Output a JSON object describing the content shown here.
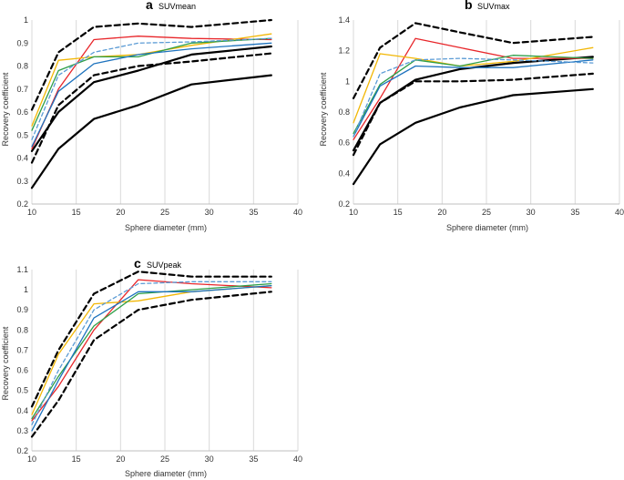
{
  "chart_data": [
    {
      "type": "line",
      "panel_letter": "a",
      "title": "SUVmean",
      "xlabel": "Sphere diameter (mm)",
      "ylabel": "Recovery coefficient",
      "xlim": [
        10,
        40
      ],
      "ylim": [
        0.2,
        1.0
      ],
      "xticks": [
        "10",
        "15",
        "20",
        "25",
        "30",
        "35",
        "40"
      ],
      "yticks": [
        "0.2",
        "0.3",
        "0.4",
        "0.5",
        "0.6",
        "0.7",
        "0.8",
        "0.9",
        "1"
      ],
      "grid": "vertical",
      "x": [
        10,
        13,
        17,
        22,
        28,
        37
      ],
      "series": [
        {
          "name": "upper bound",
          "color": "#000000",
          "style": "dashed",
          "width": 2.2,
          "values": [
            0.61,
            0.86,
            0.97,
            0.985,
            0.97,
            1.0
          ]
        },
        {
          "name": "lower bound",
          "color": "#000000",
          "style": "dashed",
          "width": 2.2,
          "values": [
            0.38,
            0.63,
            0.76,
            0.8,
            0.82,
            0.855
          ]
        },
        {
          "name": "black solid upper",
          "color": "#000000",
          "style": "solid",
          "width": 2.2,
          "values": [
            0.43,
            0.6,
            0.73,
            0.78,
            0.85,
            0.885
          ]
        },
        {
          "name": "black solid lower",
          "color": "#000000",
          "style": "solid",
          "width": 2.2,
          "values": [
            0.27,
            0.44,
            0.57,
            0.63,
            0.72,
            0.76
          ]
        },
        {
          "name": "red",
          "color": "#e8262a",
          "style": "solid",
          "width": 1.3,
          "values": [
            0.44,
            0.7,
            0.915,
            0.93,
            0.92,
            0.915
          ]
        },
        {
          "name": "orange",
          "color": "#f2b705",
          "style": "solid",
          "width": 1.3,
          "values": [
            0.54,
            0.825,
            0.84,
            0.85,
            0.89,
            0.94
          ]
        },
        {
          "name": "green",
          "color": "#2e9e48",
          "style": "solid",
          "width": 1.3,
          "values": [
            0.52,
            0.78,
            0.84,
            0.84,
            0.9,
            0.92
          ]
        },
        {
          "name": "blue",
          "color": "#1e73be",
          "style": "solid",
          "width": 1.3,
          "values": [
            0.45,
            0.69,
            0.81,
            0.85,
            0.875,
            0.9
          ]
        },
        {
          "name": "light blue dashed",
          "color": "#5b9bd5",
          "style": "dashed",
          "width": 1.3,
          "values": [
            0.48,
            0.76,
            0.86,
            0.9,
            0.905,
            0.92
          ]
        }
      ]
    },
    {
      "type": "line",
      "panel_letter": "b",
      "title": "SUVmax",
      "xlabel": "Sphere diameter (mm)",
      "ylabel": "Recovery coefficient",
      "xlim": [
        10,
        40
      ],
      "ylim": [
        0.2,
        1.4
      ],
      "xticks": [
        "10",
        "15",
        "20",
        "25",
        "30",
        "35",
        "40"
      ],
      "yticks": [
        "0.2",
        "0.4",
        "0.6",
        "0.8",
        "1",
        "1.2",
        "1.4"
      ],
      "grid": "vertical",
      "x": [
        10,
        13,
        17,
        22,
        28,
        37
      ],
      "series": [
        {
          "name": "upper bound",
          "color": "#000000",
          "style": "dashed",
          "width": 2.2,
          "values": [
            0.89,
            1.22,
            1.38,
            1.32,
            1.25,
            1.29
          ]
        },
        {
          "name": "lower bound",
          "color": "#000000",
          "style": "dashed",
          "width": 2.2,
          "values": [
            0.52,
            0.86,
            1.0,
            1.0,
            1.01,
            1.05
          ]
        },
        {
          "name": "black solid upper",
          "color": "#000000",
          "style": "solid",
          "width": 2.2,
          "values": [
            0.55,
            0.86,
            1.01,
            1.08,
            1.12,
            1.16
          ]
        },
        {
          "name": "black solid lower",
          "color": "#000000",
          "style": "solid",
          "width": 2.2,
          "values": [
            0.33,
            0.59,
            0.73,
            0.83,
            0.91,
            0.95
          ]
        },
        {
          "name": "red",
          "color": "#e8262a",
          "style": "solid",
          "width": 1.3,
          "values": [
            0.62,
            0.89,
            1.28,
            1.22,
            1.15,
            1.15
          ]
        },
        {
          "name": "orange",
          "color": "#f2b705",
          "style": "solid",
          "width": 1.3,
          "values": [
            0.73,
            1.18,
            1.15,
            1.1,
            1.13,
            1.22
          ]
        },
        {
          "name": "green",
          "color": "#2e9e48",
          "style": "solid",
          "width": 1.3,
          "values": [
            0.66,
            0.98,
            1.14,
            1.1,
            1.17,
            1.15
          ]
        },
        {
          "name": "blue",
          "color": "#1e73be",
          "style": "solid",
          "width": 1.3,
          "values": [
            0.64,
            0.97,
            1.1,
            1.09,
            1.09,
            1.14
          ]
        },
        {
          "name": "light blue dashed",
          "color": "#5b9bd5",
          "style": "dashed",
          "width": 1.3,
          "values": [
            0.64,
            1.05,
            1.14,
            1.15,
            1.14,
            1.12
          ]
        }
      ]
    },
    {
      "type": "line",
      "panel_letter": "c",
      "title": "SUVpeak",
      "xlabel": "Sphere diameter (mm)",
      "ylabel": "Recovery coefficient",
      "xlim": [
        10,
        40
      ],
      "ylim": [
        0.2,
        1.1
      ],
      "xticks": [
        "10",
        "15",
        "20",
        "25",
        "30",
        "35",
        "40"
      ],
      "yticks": [
        "0.2",
        "0.3",
        "0.4",
        "0.5",
        "0.6",
        "0.7",
        "0.8",
        "0.9",
        "1",
        "1.1"
      ],
      "grid": "vertical",
      "x": [
        10,
        13,
        17,
        22,
        28,
        37
      ],
      "series": [
        {
          "name": "upper bound",
          "color": "#000000",
          "style": "dashed",
          "width": 2.2,
          "values": [
            0.42,
            0.7,
            0.98,
            1.09,
            1.065,
            1.065
          ]
        },
        {
          "name": "lower bound",
          "color": "#000000",
          "style": "dashed",
          "width": 2.2,
          "values": [
            0.27,
            0.45,
            0.75,
            0.9,
            0.95,
            0.99
          ]
        },
        {
          "name": "red",
          "color": "#e8262a",
          "style": "solid",
          "width": 1.3,
          "values": [
            0.35,
            0.52,
            0.8,
            1.05,
            1.03,
            1.01
          ]
        },
        {
          "name": "orange",
          "color": "#f2b705",
          "style": "solid",
          "width": 1.3,
          "values": [
            0.38,
            0.68,
            0.93,
            0.945,
            0.99,
            1.02
          ]
        },
        {
          "name": "green",
          "color": "#2e9e48",
          "style": "solid",
          "width": 1.3,
          "values": [
            0.36,
            0.57,
            0.82,
            0.98,
            1.0,
            1.03
          ]
        },
        {
          "name": "blue",
          "color": "#1e73be",
          "style": "solid",
          "width": 1.3,
          "values": [
            0.3,
            0.55,
            0.86,
            0.99,
            0.99,
            1.02
          ]
        },
        {
          "name": "light blue dashed",
          "color": "#5b9bd5",
          "style": "dashed",
          "width": 1.3,
          "values": [
            0.33,
            0.6,
            0.9,
            1.03,
            1.04,
            1.04
          ]
        }
      ]
    }
  ]
}
